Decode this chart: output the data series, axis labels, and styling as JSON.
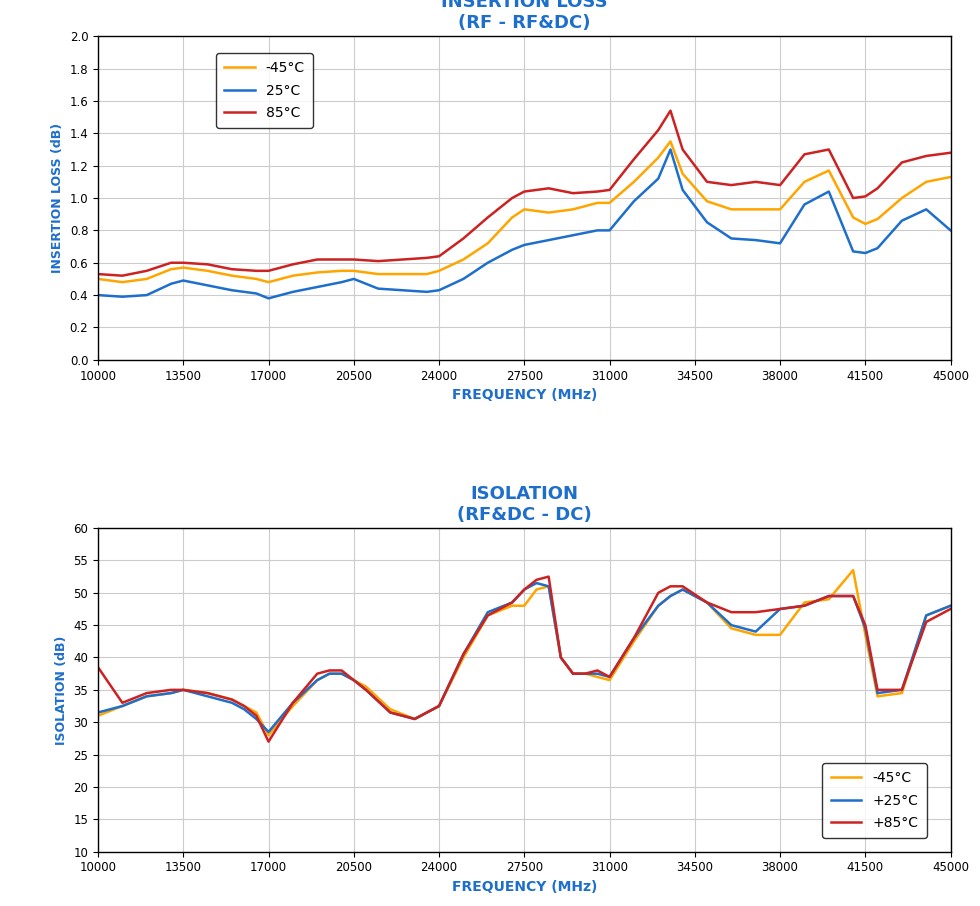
{
  "title1": "INSERTION LOSS",
  "subtitle1": "(RF - RF&DC)",
  "title2": "ISOLATION",
  "subtitle2": "(RF&DC - DC)",
  "xlabel": "FREQUENCY (MHz)",
  "ylabel1": "INSERTION LOSS (dB)",
  "ylabel2": "ISOLATION (dB)",
  "title_color": "#1e6fcc",
  "label_color": "#1e6fcc",
  "freq": [
    10000,
    11000,
    12000,
    13000,
    13500,
    14500,
    15500,
    16500,
    17000,
    18000,
    19000,
    20000,
    20500,
    21500,
    22500,
    23500,
    24000,
    25000,
    26000,
    27000,
    27500,
    28500,
    29500,
    30500,
    31000,
    32000,
    33000,
    33500,
    34000,
    35000,
    36000,
    37000,
    38000,
    39000,
    40000,
    41000,
    41500,
    42000,
    43000,
    44000,
    45000
  ],
  "il_m45": [
    0.5,
    0.48,
    0.5,
    0.56,
    0.57,
    0.55,
    0.52,
    0.5,
    0.48,
    0.52,
    0.54,
    0.55,
    0.55,
    0.53,
    0.53,
    0.53,
    0.55,
    0.62,
    0.72,
    0.88,
    0.93,
    0.91,
    0.93,
    0.97,
    0.97,
    1.1,
    1.25,
    1.35,
    1.15,
    0.98,
    0.93,
    0.93,
    0.93,
    1.1,
    1.17,
    0.88,
    0.84,
    0.87,
    1.0,
    1.1,
    1.13
  ],
  "il_25": [
    0.4,
    0.39,
    0.4,
    0.47,
    0.49,
    0.46,
    0.43,
    0.41,
    0.38,
    0.42,
    0.45,
    0.48,
    0.5,
    0.44,
    0.43,
    0.42,
    0.43,
    0.5,
    0.6,
    0.68,
    0.71,
    0.74,
    0.77,
    0.8,
    0.8,
    0.98,
    1.12,
    1.3,
    1.05,
    0.85,
    0.75,
    0.74,
    0.72,
    0.96,
    1.04,
    0.67,
    0.66,
    0.69,
    0.86,
    0.93,
    0.8
  ],
  "il_85": [
    0.53,
    0.52,
    0.55,
    0.6,
    0.6,
    0.59,
    0.56,
    0.55,
    0.55,
    0.59,
    0.62,
    0.62,
    0.62,
    0.61,
    0.62,
    0.63,
    0.64,
    0.75,
    0.88,
    1.0,
    1.04,
    1.06,
    1.03,
    1.04,
    1.05,
    1.24,
    1.42,
    1.54,
    1.3,
    1.1,
    1.08,
    1.1,
    1.08,
    1.27,
    1.3,
    1.0,
    1.01,
    1.06,
    1.22,
    1.26,
    1.28
  ],
  "iso_freq": [
    10000,
    11000,
    12000,
    13000,
    13500,
    14500,
    15500,
    16000,
    16500,
    17000,
    18000,
    19000,
    19500,
    20000,
    20500,
    21000,
    22000,
    23000,
    24000,
    25000,
    26000,
    27000,
    27500,
    28000,
    28500,
    29000,
    29500,
    30000,
    30500,
    31000,
    32000,
    33000,
    33500,
    34000,
    35000,
    36000,
    37000,
    38000,
    39000,
    40000,
    41000,
    41500,
    42000,
    43000,
    44000,
    45000
  ],
  "iso_m45": [
    31.0,
    32.5,
    34.0,
    34.5,
    35.0,
    34.5,
    33.5,
    32.5,
    31.5,
    28.0,
    32.5,
    36.5,
    37.5,
    37.5,
    36.5,
    35.5,
    32.0,
    30.5,
    32.5,
    40.0,
    46.5,
    48.0,
    48.0,
    50.5,
    51.0,
    40.0,
    37.5,
    37.5,
    37.0,
    36.5,
    42.5,
    48.0,
    49.5,
    50.5,
    48.5,
    44.5,
    43.5,
    43.5,
    48.5,
    49.0,
    53.5,
    43.5,
    34.0,
    34.5,
    46.5,
    48.0
  ],
  "iso_25": [
    31.5,
    32.5,
    34.0,
    34.5,
    35.0,
    34.0,
    33.0,
    32.0,
    30.5,
    28.5,
    33.0,
    36.5,
    37.5,
    37.5,
    36.5,
    35.0,
    31.5,
    30.5,
    32.5,
    40.5,
    47.0,
    48.5,
    50.5,
    51.5,
    51.0,
    40.0,
    37.5,
    37.5,
    37.5,
    37.0,
    43.0,
    48.0,
    49.5,
    50.5,
    48.5,
    45.0,
    44.0,
    47.5,
    48.0,
    49.5,
    49.5,
    44.5,
    34.5,
    35.0,
    46.5,
    48.0
  ],
  "iso_85": [
    38.5,
    33.0,
    34.5,
    35.0,
    35.0,
    34.5,
    33.5,
    32.5,
    31.0,
    27.0,
    33.0,
    37.5,
    38.0,
    38.0,
    36.5,
    35.0,
    31.5,
    30.5,
    32.5,
    40.5,
    46.5,
    48.5,
    50.5,
    52.0,
    52.5,
    40.0,
    37.5,
    37.5,
    38.0,
    37.0,
    43.0,
    50.0,
    51.0,
    51.0,
    48.5,
    47.0,
    47.0,
    47.5,
    48.0,
    49.5,
    49.5,
    45.0,
    35.0,
    35.0,
    45.5,
    47.5
  ],
  "color_m45": "#FFA500",
  "color_25": "#1e6fcc",
  "color_85": "#cc2222",
  "legend1_labels": [
    "-45°C",
    "25°C",
    "85°C"
  ],
  "legend2_labels": [
    "-45°C",
    "+25°C",
    "+85°C"
  ],
  "lw": 1.8,
  "grid_color": "#cccccc",
  "bg_color": "#ffffff"
}
